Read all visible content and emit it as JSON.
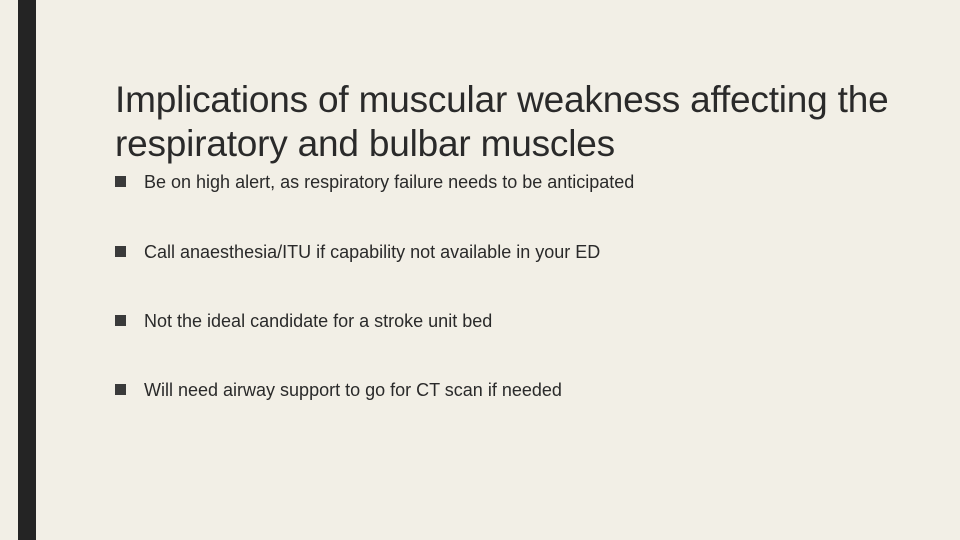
{
  "slide": {
    "background_color": "#f2efe6",
    "sidebar_color": "#242424",
    "text_color": "#2a2a2a",
    "title": "Implications of muscular weakness affecting the respiratory and bulbar muscles",
    "title_fontsize": 37,
    "bullet_fontsize": 18,
    "bullet_marker": "square",
    "bullet_marker_color": "#3a3a3a",
    "bullets": [
      "Be on high alert, as respiratory failure needs to be anticipated",
      "Call anaesthesia/ITU if capability not available in your ED",
      "Not the ideal candidate for a stroke unit bed",
      "Will need airway support to go for CT scan if needed"
    ]
  }
}
